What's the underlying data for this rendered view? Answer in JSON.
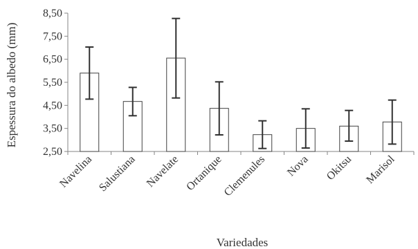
{
  "chart_data": {
    "type": "bar",
    "title": "",
    "xlabel": "Variedades",
    "ylabel": "Espessura do albedo (mm)",
    "ylim": [
      2.5,
      8.5
    ],
    "yticks": [
      "2,50",
      "3,50",
      "4,50",
      "5,50",
      "6,50",
      "7,50",
      "8,50"
    ],
    "categories": [
      "Navelina",
      "Salustiana",
      "Navelate",
      "Ortanique",
      "Clemenules",
      "Nova",
      "Okitsu",
      "Marisol"
    ],
    "values": [
      5.9,
      4.67,
      6.55,
      4.37,
      3.23,
      3.5,
      3.6,
      3.78
    ],
    "error_low": [
      4.77,
      4.05,
      4.82,
      3.22,
      2.63,
      2.65,
      2.95,
      2.82
    ],
    "error_high": [
      7.03,
      5.28,
      8.27,
      5.52,
      3.83,
      4.35,
      4.28,
      4.73
    ],
    "bar_fill": "#ffffff",
    "bar_stroke": "#404040",
    "error_color": "#303030",
    "axis_color": "#868686",
    "grid": false,
    "legend": "none"
  }
}
